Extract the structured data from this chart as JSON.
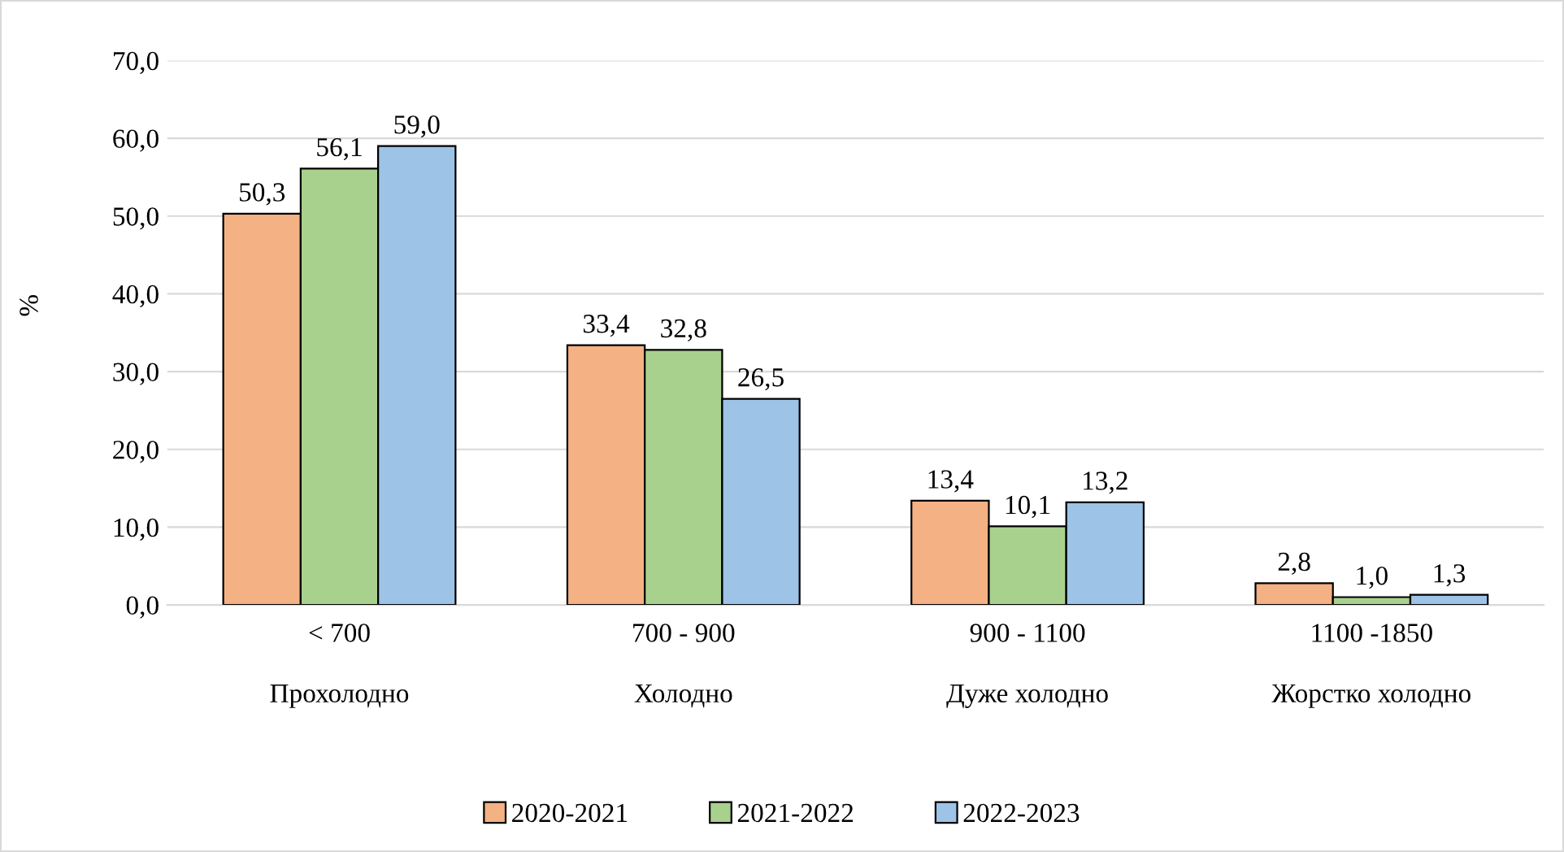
{
  "chart_data": {
    "type": "bar",
    "ylabel": "%",
    "categories": [
      "< 700\n\nПрохолодно",
      "700 - 900\n\nХолодно",
      "900 - 1100\n\nДуже холодно",
      "1100 -1850\n\nЖорстко холодно"
    ],
    "series": [
      {
        "name": "2020-2021",
        "color": "#f4b183",
        "values": [
          50.3,
          33.4,
          13.4,
          2.8
        ]
      },
      {
        "name": "2021-2022",
        "color": "#a9d18e",
        "values": [
          56.1,
          32.8,
          10.1,
          1.0
        ]
      },
      {
        "name": "2022-2023",
        "color": "#9dc3e6",
        "values": [
          59.0,
          26.5,
          13.2,
          1.3
        ]
      }
    ],
    "value_labels": [
      [
        "50,3",
        "33,4",
        "13,4",
        "2,8"
      ],
      [
        "56,1",
        "32,8",
        "10,1",
        "1,0"
      ],
      [
        "59,0",
        "26,5",
        "13,2",
        "1,3"
      ]
    ],
    "ylim": [
      0,
      70
    ],
    "yticks": [
      {
        "value": 0,
        "label": "0,0"
      },
      {
        "value": 10,
        "label": "10,0"
      },
      {
        "value": 20,
        "label": "20,0"
      },
      {
        "value": 30,
        "label": "30,0"
      },
      {
        "value": 40,
        "label": "40,0"
      },
      {
        "value": 50,
        "label": "50,0"
      },
      {
        "value": 60,
        "label": "60,0"
      },
      {
        "value": 70,
        "label": "70,0"
      }
    ],
    "grid": "y",
    "legend": "bottom"
  }
}
